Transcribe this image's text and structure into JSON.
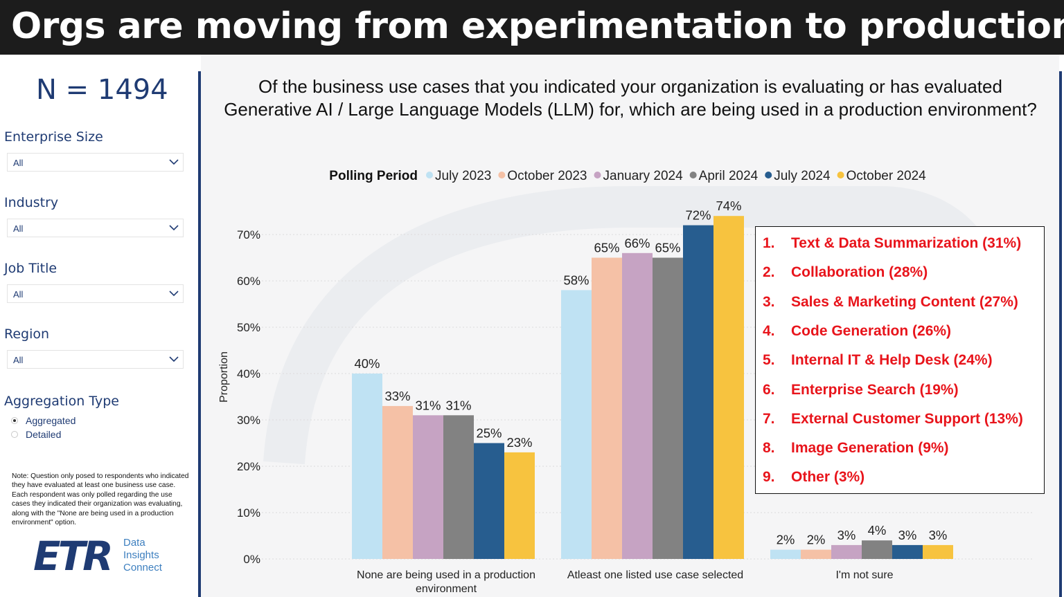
{
  "header": {
    "title": "Orgs are moving from experimentation to production"
  },
  "sidebar": {
    "n_label": "N = 1494",
    "filters": [
      {
        "label": "Enterprise Size",
        "value": "All"
      },
      {
        "label": "Industry",
        "value": "All"
      },
      {
        "label": "Job Title",
        "value": "All"
      },
      {
        "label": "Region",
        "value": "All"
      }
    ],
    "aggregation": {
      "label": "Aggregation Type",
      "options": [
        {
          "label": "Aggregated",
          "selected": true
        },
        {
          "label": "Detailed",
          "selected": false
        }
      ]
    },
    "note": "Note: Question only posed to respondents who indicated they have evaluated at least one business use case. Each respondent was only polled regarding the use cases they indicated their organization was evaluating, along with the \"None are being used in a production environment\" option.",
    "logo": {
      "word": "ETR",
      "lines": [
        "Data",
        "Insights",
        "Connect"
      ]
    }
  },
  "chart_data": {
    "type": "bar",
    "title": "Of the business use cases that you indicated your organization is evaluating or has evaluated Generative AI / Large Language Models (LLM) for, which are being used in a production environment?",
    "legend_title": "Polling Period",
    "legend_position": "top",
    "ylabel": "Proportion",
    "ylim": [
      0,
      74
    ],
    "yticks": [
      0,
      10,
      20,
      30,
      40,
      50,
      60,
      70
    ],
    "ytick_suffix": "%",
    "grid": true,
    "categories": [
      "None are being used in a production environment",
      "Atleast one listed use case selected",
      "I'm not sure"
    ],
    "series": [
      {
        "name": "July 2023",
        "color": "#bfe2f3",
        "values": [
          40,
          58,
          2
        ]
      },
      {
        "name": "October 2023",
        "color": "#f5c1a6",
        "values": [
          33,
          65,
          2
        ]
      },
      {
        "name": "January 2024",
        "color": "#c6a3c3",
        "values": [
          31,
          66,
          3
        ]
      },
      {
        "name": "April 2024",
        "color": "#828282",
        "values": [
          31,
          65,
          4
        ]
      },
      {
        "name": "July 2024",
        "color": "#275d8f",
        "values": [
          25,
          72,
          3
        ]
      },
      {
        "name": "October 2024",
        "color": "#f7c33f",
        "values": [
          23,
          74,
          3
        ]
      }
    ]
  },
  "ranking": {
    "items": [
      {
        "num": "1.",
        "text": "Text & Data Summarization (31%)"
      },
      {
        "num": "2.",
        "text": "Collaboration (28%)"
      },
      {
        "num": "3.",
        "text": "Sales & Marketing Content (27%)"
      },
      {
        "num": "4.",
        "text": "Code Generation (26%)"
      },
      {
        "num": "5.",
        "text": "Internal IT & Help Desk (24%)"
      },
      {
        "num": "6.",
        "text": "Enterprise Search (19%)"
      },
      {
        "num": "7.",
        "text": "External Customer Support (13%)"
      },
      {
        "num": "8.",
        "text": "Image Generation (9%)"
      },
      {
        "num": "9.",
        "text": "Other (3%)"
      }
    ]
  }
}
